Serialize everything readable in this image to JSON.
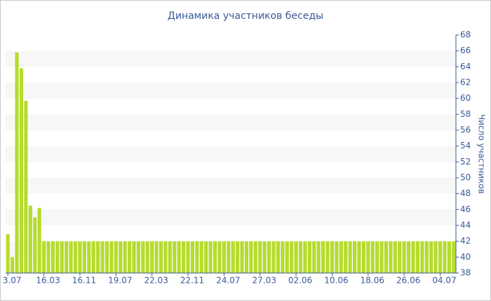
{
  "chart_data": {
    "type": "bar",
    "title": "Динамика участников беседы",
    "y_axis_label": "Число участников",
    "color": "#b6dc2c",
    "categories": [
      "3.07",
      null,
      null,
      null,
      null,
      null,
      null,
      null,
      "16.03",
      null,
      null,
      null,
      null,
      null,
      null,
      null,
      "16.11",
      null,
      null,
      null,
      null,
      null,
      null,
      null,
      "19.07",
      null,
      null,
      null,
      null,
      null,
      null,
      null,
      "22.03",
      null,
      null,
      null,
      null,
      null,
      null,
      null,
      "22.11",
      null,
      null,
      null,
      null,
      null,
      null,
      null,
      "24.07",
      null,
      null,
      null,
      null,
      null,
      null,
      null,
      "27.03",
      null,
      null,
      null,
      null,
      null,
      null,
      null,
      "02.06",
      null,
      null,
      null,
      null,
      null,
      null,
      null,
      "10.06",
      null,
      null,
      null,
      null,
      null,
      null,
      null,
      "18.06",
      null,
      null,
      null,
      null,
      null,
      null,
      null,
      "26.06",
      null,
      null,
      null,
      null,
      null,
      null,
      null,
      "04.07",
      null,
      null,
      null
    ],
    "values": [
      42.9,
      40,
      65.8,
      63.8,
      59.7,
      46.5,
      45,
      46.2,
      42,
      42,
      42,
      42,
      42,
      42,
      42,
      42,
      42,
      42,
      42,
      42,
      42,
      42,
      42,
      42,
      42,
      42,
      42,
      42,
      42,
      42,
      42,
      42,
      42,
      42,
      42,
      42,
      42,
      42,
      42,
      42,
      42,
      42,
      42,
      42,
      42,
      42,
      42,
      42,
      42,
      42,
      42,
      42,
      42,
      42,
      42,
      42,
      42,
      42,
      42,
      42,
      42,
      42,
      42,
      42,
      42,
      42,
      42,
      42,
      42,
      42,
      42,
      42,
      42,
      42,
      42,
      42,
      42,
      42,
      42,
      42,
      42,
      42,
      42,
      42,
      42,
      42,
      42,
      42,
      42,
      42,
      42,
      42,
      42,
      42,
      42,
      42,
      42,
      42,
      42,
      42
    ],
    "ylim": [
      38,
      68
    ],
    "yticks": [
      38,
      40,
      42,
      44,
      46,
      48,
      50,
      52,
      54,
      56,
      58,
      60,
      62,
      64,
      66,
      68
    ],
    "y_axis_side": "right"
  }
}
